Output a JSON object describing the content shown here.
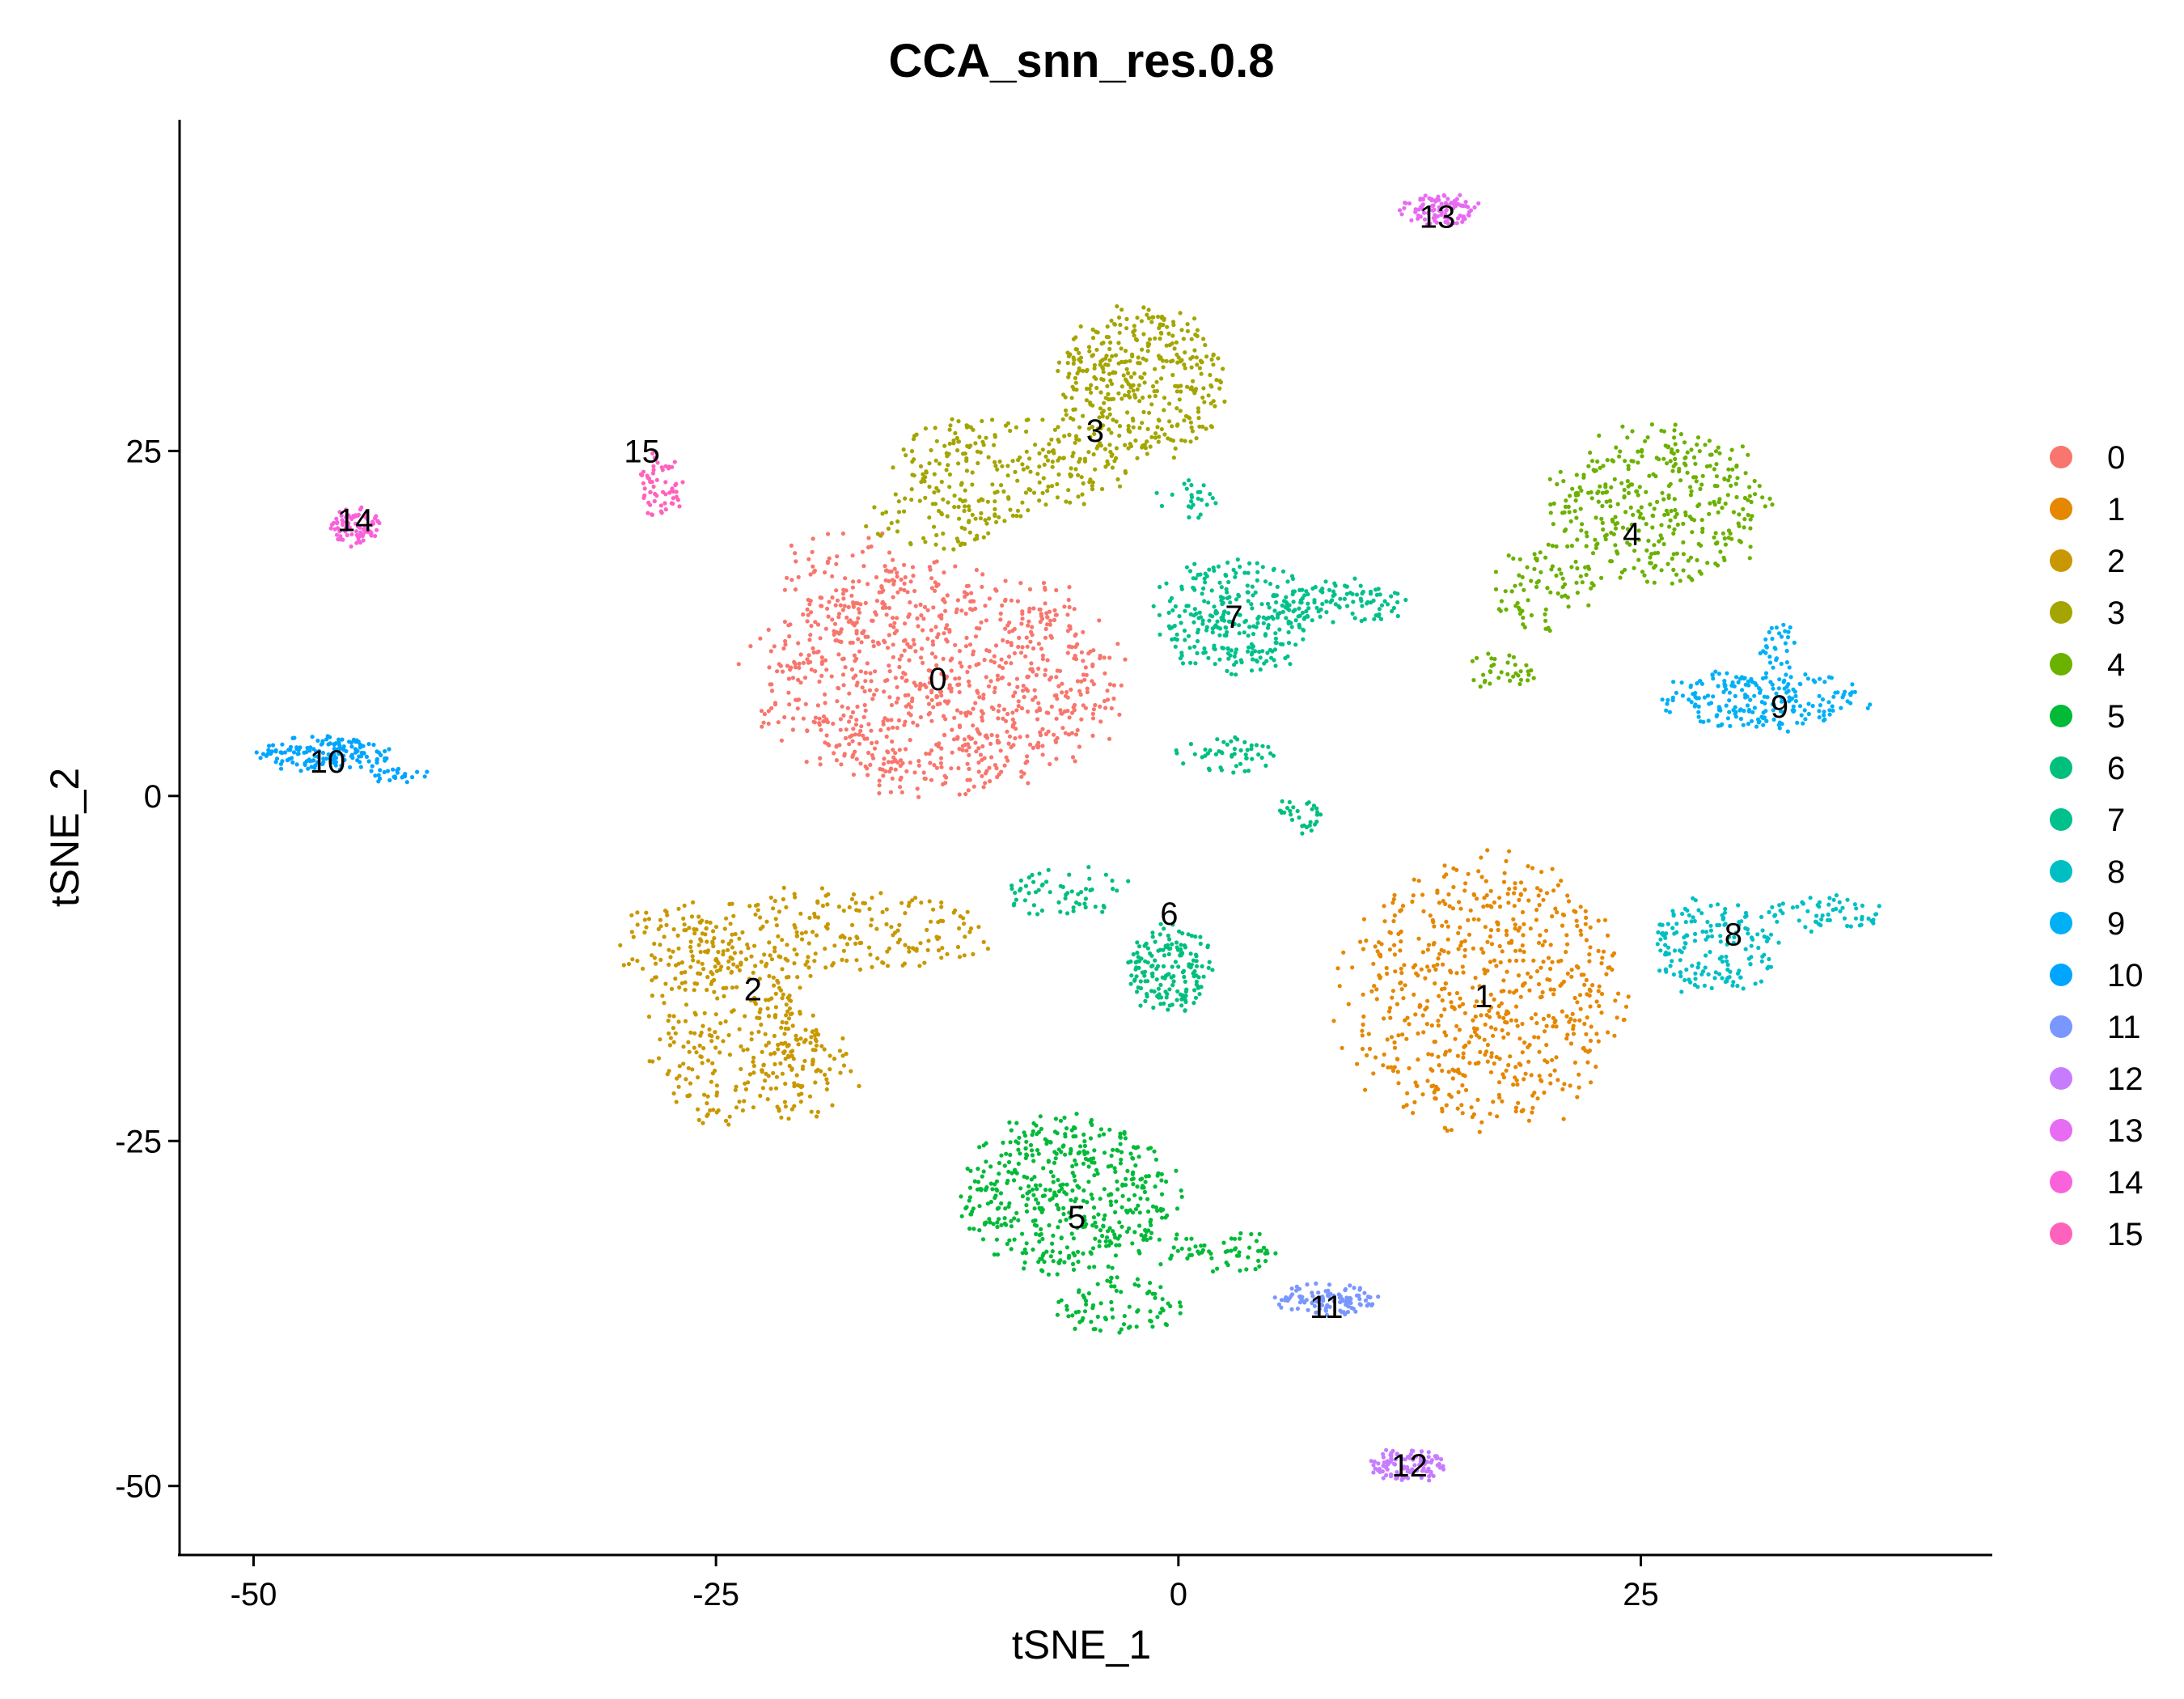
{
  "chart_data": {
    "type": "scatter",
    "title": "CCA_snn_res.0.8",
    "xlabel": "tSNE_1",
    "ylabel": "tSNE_2",
    "xlim": [
      -54,
      44
    ],
    "ylim": [
      -55,
      49
    ],
    "xticks": [
      -50,
      -25,
      0,
      25
    ],
    "yticks": [
      -50,
      -25,
      0,
      25
    ],
    "x_tick_labels": [
      "-50",
      "-25",
      "0",
      "25"
    ],
    "y_tick_labels": [
      "-50",
      "-25",
      "0",
      "25"
    ],
    "grid": false,
    "legend_position": "right",
    "series": [
      {
        "name": "0",
        "color": "#F8766D",
        "center": [
          -13,
          8.5
        ],
        "label_pos": [
          -13,
          8.5
        ],
        "regions": [
          {
            "cx": -13,
            "cy": 8.5,
            "rx": 11,
            "ry": 9,
            "n": 950
          },
          {
            "cx": -18,
            "cy": 16,
            "rx": 4,
            "ry": 4,
            "n": 60
          }
        ]
      },
      {
        "name": "1",
        "color": "#E58700",
        "center": [
          16.5,
          -14.5
        ],
        "label_pos": [
          16.5,
          -14.5
        ],
        "regions": [
          {
            "cx": 16.5,
            "cy": -14.5,
            "rx": 8.5,
            "ry": 11,
            "n": 650
          }
        ]
      },
      {
        "name": "2",
        "color": "#C99800",
        "center": [
          -23,
          -14
        ],
        "label_pos": [
          -23,
          -14
        ],
        "regions": [
          {
            "cx": -24,
            "cy": -17,
            "rx": 5,
            "ry": 8,
            "n": 280
          },
          {
            "cx": -19,
            "cy": -10,
            "rx": 10,
            "ry": 3.5,
            "n": 200
          },
          {
            "cx": -27,
            "cy": -11,
            "rx": 4,
            "ry": 4,
            "n": 80
          },
          {
            "cx": -20,
            "cy": -20,
            "rx": 3,
            "ry": 4,
            "n": 80
          }
        ]
      },
      {
        "name": "3",
        "color": "#A3A500",
        "center": [
          -4.5,
          26.5
        ],
        "label_pos": [
          -4.5,
          26.5
        ],
        "regions": [
          {
            "cx": -2,
            "cy": 30,
            "rx": 5,
            "ry": 6,
            "n": 380
          },
          {
            "cx": -9,
            "cy": 24,
            "rx": 7,
            "ry": 4,
            "n": 220
          },
          {
            "cx": -13,
            "cy": 20,
            "rx": 5,
            "ry": 2.5,
            "n": 80
          }
        ]
      },
      {
        "name": "4",
        "color": "#6BB100",
        "center": [
          24.5,
          19
        ],
        "label_pos": [
          24.5,
          19
        ],
        "regions": [
          {
            "cx": 26,
            "cy": 21,
            "rx": 6.5,
            "ry": 6.5,
            "n": 370
          },
          {
            "cx": 20,
            "cy": 15,
            "rx": 3.5,
            "ry": 3.5,
            "n": 80
          },
          {
            "cx": 17.5,
            "cy": 9,
            "rx": 2,
            "ry": 1.5,
            "n": 35
          }
        ]
      },
      {
        "name": "5",
        "color": "#00BA38",
        "center": [
          -5.5,
          -30.5
        ],
        "label_pos": [
          -5.5,
          -30.5
        ],
        "regions": [
          {
            "cx": -6,
            "cy": -29,
            "rx": 6.5,
            "ry": 6.5,
            "n": 480
          },
          {
            "cx": -3,
            "cy": -37,
            "rx": 4,
            "ry": 2.5,
            "n": 80
          },
          {
            "cx": 2,
            "cy": -33,
            "rx": 3.5,
            "ry": 2,
            "n": 60
          }
        ]
      },
      {
        "name": "6",
        "color": "#00BF7D",
        "center": [
          -0.5,
          -8.5
        ],
        "label_pos": [
          -0.5,
          -8.5
        ],
        "regions": [
          {
            "cx": -0.5,
            "cy": -12.5,
            "rx": 2.5,
            "ry": 3.5,
            "n": 170
          },
          {
            "cx": -6,
            "cy": -7,
            "rx": 4,
            "ry": 2,
            "n": 60
          },
          {
            "cx": 2.5,
            "cy": 3,
            "rx": 3,
            "ry": 1.5,
            "n": 50
          },
          {
            "cx": 6.5,
            "cy": -1.5,
            "rx": 1.5,
            "ry": 1.5,
            "n": 30
          }
        ]
      },
      {
        "name": "7",
        "color": "#00C08B",
        "center": [
          3,
          13
        ],
        "label_pos": [
          3,
          13
        ],
        "regions": [
          {
            "cx": 3,
            "cy": 13,
            "rx": 5,
            "ry": 4.5,
            "n": 300
          },
          {
            "cx": 9,
            "cy": 14,
            "rx": 4,
            "ry": 1.8,
            "n": 90
          },
          {
            "cx": 0.5,
            "cy": 21.5,
            "rx": 2,
            "ry": 1.5,
            "n": 25
          }
        ]
      },
      {
        "name": "8",
        "color": "#00BFC4",
        "center": [
          30,
          -10
        ],
        "label_pos": [
          30,
          -10
        ],
        "regions": [
          {
            "cx": 29,
            "cy": -11,
            "rx": 4,
            "ry": 4,
            "n": 170
          },
          {
            "cx": 35,
            "cy": -8.5,
            "rx": 4,
            "ry": 1.5,
            "n": 60
          }
        ]
      },
      {
        "name": "9",
        "color": "#00B0F6",
        "center": [
          32.5,
          6.5
        ],
        "label_pos": [
          32.5,
          6.5
        ],
        "regions": [
          {
            "cx": 31.5,
            "cy": 7,
            "rx": 6,
            "ry": 2.5,
            "n": 220
          },
          {
            "cx": 32.5,
            "cy": 11,
            "rx": 1.2,
            "ry": 2,
            "n": 30
          }
        ]
      },
      {
        "name": "10",
        "color": "#00A5FF",
        "center": [
          -46,
          2.5
        ],
        "label_pos": [
          -46,
          2.5
        ],
        "regions": [
          {
            "cx": -46,
            "cy": 3,
            "rx": 4,
            "ry": 1.5,
            "n": 150
          },
          {
            "cx": -42,
            "cy": 1.5,
            "rx": 2,
            "ry": 0.6,
            "n": 25
          }
        ]
      },
      {
        "name": "11",
        "color": "#7997FF",
        "center": [
          8,
          -37
        ],
        "label_pos": [
          8,
          -37
        ],
        "regions": [
          {
            "cx": 8,
            "cy": -36.5,
            "rx": 3,
            "ry": 1.3,
            "n": 110
          }
        ]
      },
      {
        "name": "12",
        "color": "#C77CFF",
        "center": [
          12.5,
          -48.5
        ],
        "label_pos": [
          12.5,
          -48.5
        ],
        "regions": [
          {
            "cx": 12.5,
            "cy": -48.5,
            "rx": 2.5,
            "ry": 1.3,
            "n": 110
          }
        ]
      },
      {
        "name": "13",
        "color": "#E76BF3",
        "center": [
          14,
          42
        ],
        "label_pos": [
          14,
          42
        ],
        "regions": [
          {
            "cx": 14,
            "cy": 42.5,
            "rx": 2.5,
            "ry": 1.3,
            "n": 100
          }
        ]
      },
      {
        "name": "14",
        "color": "#FA62DB",
        "center": [
          -44.5,
          20
        ],
        "label_pos": [
          -44.5,
          20
        ],
        "regions": [
          {
            "cx": -44.5,
            "cy": 19.5,
            "rx": 1.5,
            "ry": 1.5,
            "n": 90
          }
        ]
      },
      {
        "name": "15",
        "color": "#FF62BC",
        "center": [
          -28.5,
          23.5
        ],
        "label_pos": [
          -29,
          25
        ],
        "regions": [
          {
            "cx": -28,
            "cy": 22.5,
            "rx": 1.5,
            "ry": 2.5,
            "n": 60
          }
        ]
      }
    ]
  }
}
